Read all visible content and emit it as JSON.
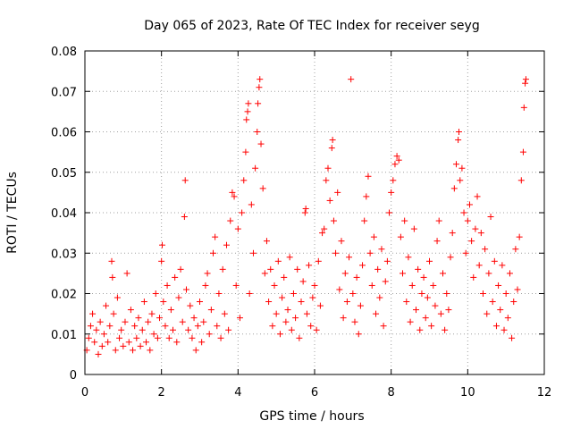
{
  "chart_data": {
    "type": "scatter",
    "title": "Day 065 of 2023, Rate Of TEC Index for receiver seyg",
    "xlabel": "GPS time / hours",
    "ylabel": "ROTI / TECUs",
    "xlim": [
      0,
      12
    ],
    "ylim": [
      0,
      0.08
    ],
    "xticks": [
      0,
      2,
      4,
      6,
      8,
      10,
      12
    ],
    "yticks": [
      0,
      0.01,
      0.02,
      0.03,
      0.04,
      0.05,
      0.06,
      0.07,
      0.08
    ],
    "xtick_labels": [
      "0",
      "2",
      "4",
      "6",
      "8",
      "10",
      "12"
    ],
    "ytick_labels": [
      "0",
      "0.01",
      "0.02",
      "0.03",
      "0.04",
      "0.05",
      "0.06",
      "0.07",
      "0.08"
    ],
    "grid": true,
    "marker": "+",
    "color": "#ff0000",
    "series": [
      {
        "name": "ROTI",
        "points": [
          [
            0.05,
            0.006
          ],
          [
            0.1,
            0.009
          ],
          [
            0.15,
            0.012
          ],
          [
            0.2,
            0.015
          ],
          [
            0.25,
            0.008
          ],
          [
            0.3,
            0.011
          ],
          [
            0.35,
            0.005
          ],
          [
            0.4,
            0.013
          ],
          [
            0.45,
            0.007
          ],
          [
            0.5,
            0.01
          ],
          [
            0.55,
            0.017
          ],
          [
            0.6,
            0.008
          ],
          [
            0.65,
            0.012
          ],
          [
            0.7,
            0.028
          ],
          [
            0.72,
            0.024
          ],
          [
            0.75,
            0.015
          ],
          [
            0.8,
            0.006
          ],
          [
            0.85,
            0.019
          ],
          [
            0.9,
            0.009
          ],
          [
            0.95,
            0.011
          ],
          [
            1.0,
            0.007
          ],
          [
            1.05,
            0.013
          ],
          [
            1.1,
            0.025
          ],
          [
            1.15,
            0.008
          ],
          [
            1.2,
            0.016
          ],
          [
            1.25,
            0.006
          ],
          [
            1.3,
            0.012
          ],
          [
            1.35,
            0.009
          ],
          [
            1.4,
            0.014
          ],
          [
            1.45,
            0.007
          ],
          [
            1.5,
            0.011
          ],
          [
            1.55,
            0.018
          ],
          [
            1.6,
            0.008
          ],
          [
            1.65,
            0.013
          ],
          [
            1.7,
            0.006
          ],
          [
            1.75,
            0.015
          ],
          [
            1.8,
            0.01
          ],
          [
            1.85,
            0.02
          ],
          [
            1.9,
            0.009
          ],
          [
            1.95,
            0.014
          ],
          [
            2.0,
            0.028
          ],
          [
            2.02,
            0.032
          ],
          [
            2.05,
            0.018
          ],
          [
            2.1,
            0.012
          ],
          [
            2.15,
            0.022
          ],
          [
            2.2,
            0.009
          ],
          [
            2.25,
            0.016
          ],
          [
            2.3,
            0.011
          ],
          [
            2.35,
            0.024
          ],
          [
            2.4,
            0.008
          ],
          [
            2.45,
            0.019
          ],
          [
            2.5,
            0.026
          ],
          [
            2.55,
            0.013
          ],
          [
            2.6,
            0.039
          ],
          [
            2.62,
            0.048
          ],
          [
            2.65,
            0.021
          ],
          [
            2.7,
            0.011
          ],
          [
            2.75,
            0.017
          ],
          [
            2.8,
            0.009
          ],
          [
            2.85,
            0.014
          ],
          [
            2.9,
            0.006
          ],
          [
            2.95,
            0.012
          ],
          [
            3.0,
            0.018
          ],
          [
            3.05,
            0.008
          ],
          [
            3.1,
            0.013
          ],
          [
            3.15,
            0.022
          ],
          [
            3.2,
            0.025
          ],
          [
            3.25,
            0.01
          ],
          [
            3.3,
            0.016
          ],
          [
            3.35,
            0.03
          ],
          [
            3.4,
            0.034
          ],
          [
            3.45,
            0.012
          ],
          [
            3.5,
            0.02
          ],
          [
            3.55,
            0.009
          ],
          [
            3.6,
            0.026
          ],
          [
            3.65,
            0.015
          ],
          [
            3.7,
            0.032
          ],
          [
            3.75,
            0.011
          ],
          [
            3.8,
            0.038
          ],
          [
            3.85,
            0.045
          ],
          [
            3.9,
            0.044
          ],
          [
            3.95,
            0.022
          ],
          [
            4.0,
            0.036
          ],
          [
            4.05,
            0.014
          ],
          [
            4.1,
            0.04
          ],
          [
            4.15,
            0.048
          ],
          [
            4.2,
            0.055
          ],
          [
            4.22,
            0.063
          ],
          [
            4.25,
            0.065
          ],
          [
            4.27,
            0.067
          ],
          [
            4.3,
            0.02
          ],
          [
            4.35,
            0.042
          ],
          [
            4.4,
            0.03
          ],
          [
            4.45,
            0.051
          ],
          [
            4.5,
            0.06
          ],
          [
            4.52,
            0.067
          ],
          [
            4.55,
            0.071
          ],
          [
            4.57,
            0.073
          ],
          [
            4.6,
            0.057
          ],
          [
            4.65,
            0.046
          ],
          [
            4.7,
            0.025
          ],
          [
            4.75,
            0.033
          ],
          [
            4.8,
            0.018
          ],
          [
            4.85,
            0.026
          ],
          [
            4.9,
            0.012
          ],
          [
            4.95,
            0.022
          ],
          [
            5.0,
            0.015
          ],
          [
            5.05,
            0.028
          ],
          [
            5.1,
            0.01
          ],
          [
            5.15,
            0.019
          ],
          [
            5.2,
            0.024
          ],
          [
            5.25,
            0.013
          ],
          [
            5.3,
            0.016
          ],
          [
            5.35,
            0.029
          ],
          [
            5.4,
            0.011
          ],
          [
            5.45,
            0.02
          ],
          [
            5.5,
            0.014
          ],
          [
            5.55,
            0.026
          ],
          [
            5.6,
            0.009
          ],
          [
            5.65,
            0.018
          ],
          [
            5.7,
            0.023
          ],
          [
            5.75,
            0.04
          ],
          [
            5.77,
            0.041
          ],
          [
            5.8,
            0.015
          ],
          [
            5.85,
            0.027
          ],
          [
            5.9,
            0.012
          ],
          [
            5.95,
            0.019
          ],
          [
            6.0,
            0.022
          ],
          [
            6.05,
            0.011
          ],
          [
            6.1,
            0.028
          ],
          [
            6.15,
            0.017
          ],
          [
            6.2,
            0.035
          ],
          [
            6.25,
            0.036
          ],
          [
            6.3,
            0.048
          ],
          [
            6.35,
            0.051
          ],
          [
            6.4,
            0.043
          ],
          [
            6.45,
            0.056
          ],
          [
            6.47,
            0.058
          ],
          [
            6.5,
            0.038
          ],
          [
            6.55,
            0.03
          ],
          [
            6.6,
            0.045
          ],
          [
            6.65,
            0.021
          ],
          [
            6.7,
            0.033
          ],
          [
            6.75,
            0.014
          ],
          [
            6.8,
            0.025
          ],
          [
            6.85,
            0.018
          ],
          [
            6.9,
            0.029
          ],
          [
            6.95,
            0.073
          ],
          [
            7.0,
            0.02
          ],
          [
            7.05,
            0.013
          ],
          [
            7.1,
            0.024
          ],
          [
            7.15,
            0.01
          ],
          [
            7.2,
            0.017
          ],
          [
            7.25,
            0.027
          ],
          [
            7.3,
            0.038
          ],
          [
            7.35,
            0.044
          ],
          [
            7.4,
            0.049
          ],
          [
            7.45,
            0.03
          ],
          [
            7.5,
            0.022
          ],
          [
            7.55,
            0.034
          ],
          [
            7.6,
            0.015
          ],
          [
            7.65,
            0.026
          ],
          [
            7.7,
            0.019
          ],
          [
            7.75,
            0.031
          ],
          [
            7.8,
            0.012
          ],
          [
            7.85,
            0.023
          ],
          [
            7.9,
            0.028
          ],
          [
            7.95,
            0.04
          ],
          [
            8.0,
            0.045
          ],
          [
            8.05,
            0.048
          ],
          [
            8.1,
            0.052
          ],
          [
            8.15,
            0.054
          ],
          [
            8.2,
            0.053
          ],
          [
            8.25,
            0.034
          ],
          [
            8.3,
            0.025
          ],
          [
            8.35,
            0.038
          ],
          [
            8.4,
            0.018
          ],
          [
            8.45,
            0.029
          ],
          [
            8.5,
            0.013
          ],
          [
            8.55,
            0.022
          ],
          [
            8.6,
            0.036
          ],
          [
            8.65,
            0.016
          ],
          [
            8.7,
            0.026
          ],
          [
            8.75,
            0.011
          ],
          [
            8.8,
            0.02
          ],
          [
            8.85,
            0.024
          ],
          [
            8.9,
            0.014
          ],
          [
            8.95,
            0.019
          ],
          [
            9.0,
            0.028
          ],
          [
            9.05,
            0.012
          ],
          [
            9.1,
            0.022
          ],
          [
            9.15,
            0.017
          ],
          [
            9.2,
            0.033
          ],
          [
            9.25,
            0.038
          ],
          [
            9.3,
            0.015
          ],
          [
            9.35,
            0.025
          ],
          [
            9.4,
            0.011
          ],
          [
            9.45,
            0.02
          ],
          [
            9.5,
            0.016
          ],
          [
            9.55,
            0.029
          ],
          [
            9.6,
            0.035
          ],
          [
            9.65,
            0.046
          ],
          [
            9.7,
            0.052
          ],
          [
            9.75,
            0.058
          ],
          [
            9.77,
            0.06
          ],
          [
            9.8,
            0.048
          ],
          [
            9.85,
            0.051
          ],
          [
            9.9,
            0.04
          ],
          [
            9.95,
            0.03
          ],
          [
            10.0,
            0.038
          ],
          [
            10.05,
            0.042
          ],
          [
            10.1,
            0.033
          ],
          [
            10.15,
            0.024
          ],
          [
            10.2,
            0.036
          ],
          [
            10.25,
            0.044
          ],
          [
            10.3,
            0.027
          ],
          [
            10.35,
            0.035
          ],
          [
            10.4,
            0.02
          ],
          [
            10.45,
            0.031
          ],
          [
            10.5,
            0.015
          ],
          [
            10.55,
            0.025
          ],
          [
            10.6,
            0.039
          ],
          [
            10.65,
            0.018
          ],
          [
            10.7,
            0.028
          ],
          [
            10.75,
            0.012
          ],
          [
            10.8,
            0.022
          ],
          [
            10.85,
            0.016
          ],
          [
            10.9,
            0.027
          ],
          [
            10.95,
            0.011
          ],
          [
            11.0,
            0.02
          ],
          [
            11.05,
            0.014
          ],
          [
            11.1,
            0.025
          ],
          [
            11.15,
            0.009
          ],
          [
            11.2,
            0.018
          ],
          [
            11.25,
            0.031
          ],
          [
            11.3,
            0.021
          ],
          [
            11.35,
            0.034
          ],
          [
            11.4,
            0.048
          ],
          [
            11.45,
            0.055
          ],
          [
            11.47,
            0.066
          ],
          [
            11.5,
            0.072
          ],
          [
            11.52,
            0.073
          ]
        ]
      }
    ]
  }
}
